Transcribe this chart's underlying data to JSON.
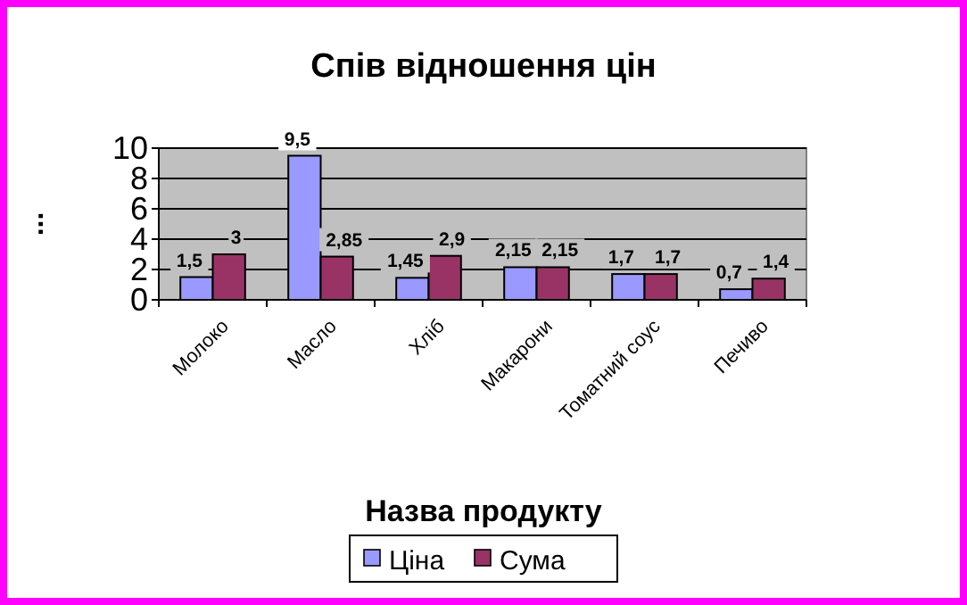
{
  "chart_data": {
    "type": "bar",
    "title": "Спів відношення цін",
    "xlabel": "Назва продукту",
    "ylabel": "...",
    "categories": [
      "Молоко",
      "Масло",
      "Хліб",
      "Макарони",
      "Томатний соус",
      "Печиво"
    ],
    "series": [
      {
        "name": "Ціна",
        "color": "#9999ff",
        "values": [
          1.5,
          9.5,
          1.45,
          2.15,
          1.7,
          0.7
        ],
        "value_labels": [
          "1,5",
          "9,5",
          "1,45",
          "2,15",
          "1,7",
          "0,7"
        ]
      },
      {
        "name": "Сума",
        "color": "#993366",
        "values": [
          3,
          2.85,
          2.9,
          2.15,
          1.7,
          1.4
        ],
        "value_labels": [
          "3",
          "2,85",
          "2,9",
          "2,15",
          "1,7",
          "1,4"
        ]
      }
    ],
    "ylim": [
      0,
      10
    ],
    "yticks": [
      0,
      2,
      4,
      6,
      8,
      10
    ],
    "grid": "y",
    "legend": "bottom"
  }
}
